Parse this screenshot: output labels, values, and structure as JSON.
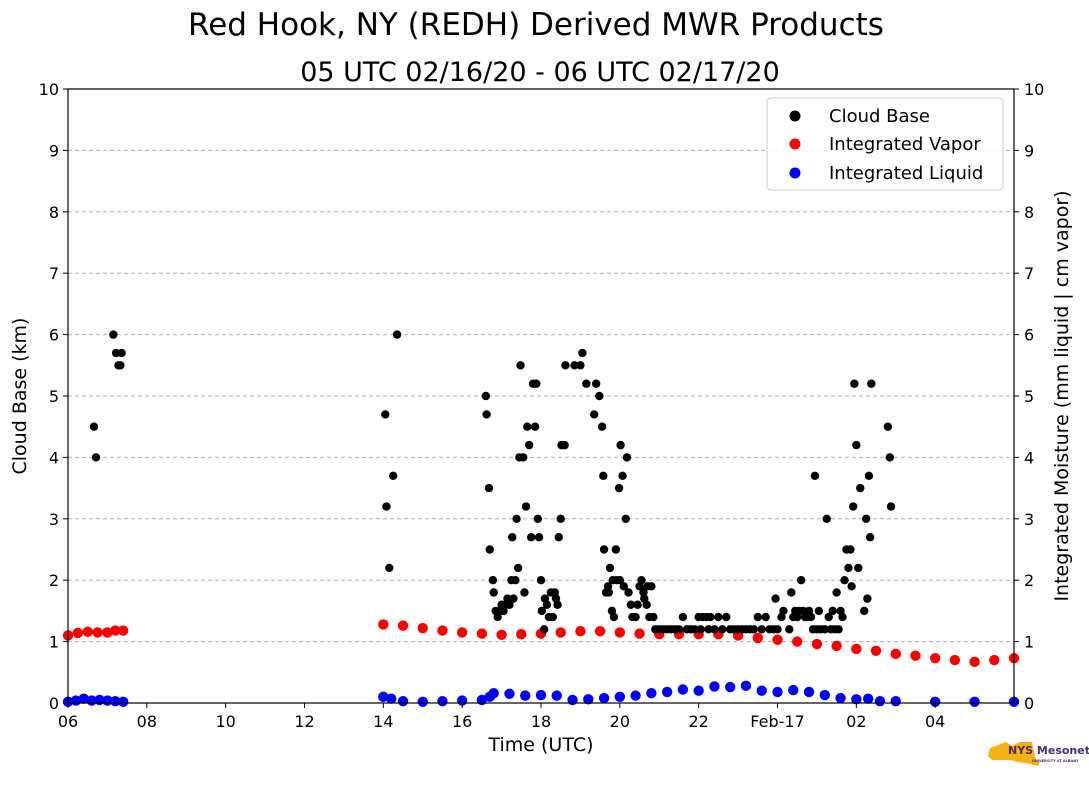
{
  "chart_data": {
    "type": "scatter",
    "title": "Red Hook, NY (REDH) Derived MWR Products",
    "subtitle": "05 UTC 02/16/20 - 06 UTC 02/17/20",
    "xlabel": "Time (UTC)",
    "ylabel": "Cloud Base (km)",
    "ylabel_right": "Integrated Moisture (mm liquid | cm vapor)",
    "x_units": "hours since 06 UTC 02/16/20",
    "xlim": [
      0,
      24
    ],
    "ylim": [
      0,
      10
    ],
    "grid": "horizontal dashed",
    "legend_position": "top-right",
    "x_ticks": [
      {
        "x": 0,
        "label": "06"
      },
      {
        "x": 2,
        "label": "08"
      },
      {
        "x": 4,
        "label": "10"
      },
      {
        "x": 6,
        "label": "12"
      },
      {
        "x": 8,
        "label": "14"
      },
      {
        "x": 10,
        "label": "16"
      },
      {
        "x": 12,
        "label": "18"
      },
      {
        "x": 14,
        "label": "20"
      },
      {
        "x": 16,
        "label": "22"
      },
      {
        "x": 18,
        "label": "Feb-17"
      },
      {
        "x": 20,
        "label": "02"
      },
      {
        "x": 22,
        "label": "04"
      }
    ],
    "y_ticks": [
      0,
      1,
      2,
      3,
      4,
      5,
      6,
      7,
      8,
      9,
      10
    ],
    "y_ticks_right": [
      0,
      1,
      2,
      3,
      4,
      5,
      6,
      7,
      8,
      9,
      10
    ],
    "series": [
      {
        "name": "Cloud Base",
        "color": "#000000",
        "points": [
          [
            0.66,
            4.5
          ],
          [
            0.71,
            4.0
          ],
          [
            1.15,
            6.0
          ],
          [
            1.22,
            5.7
          ],
          [
            1.28,
            5.5
          ],
          [
            1.33,
            5.5
          ],
          [
            1.36,
            5.7
          ],
          [
            8.05,
            4.7
          ],
          [
            8.08,
            3.2
          ],
          [
            8.15,
            2.2
          ],
          [
            8.25,
            3.7
          ],
          [
            8.35,
            6.0
          ],
          [
            10.6,
            5.0
          ],
          [
            10.62,
            4.7
          ],
          [
            10.68,
            3.5
          ],
          [
            10.7,
            2.5
          ],
          [
            10.78,
            2.0
          ],
          [
            10.8,
            1.8
          ],
          [
            10.85,
            1.5
          ],
          [
            10.9,
            1.4
          ],
          [
            10.95,
            1.5
          ],
          [
            11.0,
            1.6
          ],
          [
            11.05,
            1.5
          ],
          [
            11.1,
            1.6
          ],
          [
            11.15,
            1.7
          ],
          [
            11.2,
            1.6
          ],
          [
            11.25,
            2.0
          ],
          [
            11.27,
            2.7
          ],
          [
            11.3,
            1.7
          ],
          [
            11.35,
            2.0
          ],
          [
            11.38,
            3.0
          ],
          [
            11.42,
            2.2
          ],
          [
            11.45,
            4.0
          ],
          [
            11.48,
            5.5
          ],
          [
            11.55,
            4.0
          ],
          [
            11.58,
            1.8
          ],
          [
            11.62,
            3.2
          ],
          [
            11.65,
            4.5
          ],
          [
            11.7,
            4.2
          ],
          [
            11.75,
            2.7
          ],
          [
            11.8,
            5.2
          ],
          [
            11.85,
            4.5
          ],
          [
            11.88,
            5.2
          ],
          [
            11.92,
            3.0
          ],
          [
            11.95,
            2.7
          ],
          [
            12.0,
            2.0
          ],
          [
            12.02,
            1.5
          ],
          [
            12.08,
            1.2
          ],
          [
            12.1,
            1.7
          ],
          [
            12.15,
            1.6
          ],
          [
            12.2,
            1.4
          ],
          [
            12.25,
            1.8
          ],
          [
            12.3,
            1.4
          ],
          [
            12.35,
            1.8
          ],
          [
            12.38,
            1.7
          ],
          [
            12.42,
            1.6
          ],
          [
            12.45,
            2.7
          ],
          [
            12.5,
            3.0
          ],
          [
            12.52,
            4.2
          ],
          [
            12.6,
            4.2
          ],
          [
            12.62,
            5.5
          ],
          [
            12.85,
            5.5
          ],
          [
            13.0,
            5.5
          ],
          [
            13.05,
            5.7
          ],
          [
            13.15,
            5.2
          ],
          [
            13.35,
            4.7
          ],
          [
            13.4,
            5.2
          ],
          [
            13.48,
            5.0
          ],
          [
            13.55,
            4.5
          ],
          [
            13.58,
            3.7
          ],
          [
            13.6,
            2.5
          ],
          [
            13.65,
            1.8
          ],
          [
            13.7,
            1.9
          ],
          [
            13.72,
            1.8
          ],
          [
            13.75,
            2.2
          ],
          [
            13.8,
            1.5
          ],
          [
            13.82,
            2.0
          ],
          [
            13.85,
            1.4
          ],
          [
            13.9,
            2.5
          ],
          [
            13.92,
            2.0
          ],
          [
            13.98,
            3.5
          ],
          [
            14.0,
            2.0
          ],
          [
            14.02,
            4.2
          ],
          [
            14.07,
            3.7
          ],
          [
            14.1,
            1.9
          ],
          [
            14.15,
            3.0
          ],
          [
            14.18,
            4.0
          ],
          [
            14.22,
            1.8
          ],
          [
            14.28,
            1.6
          ],
          [
            14.32,
            1.4
          ],
          [
            14.4,
            1.4
          ],
          [
            14.45,
            1.6
          ],
          [
            14.5,
            1.9
          ],
          [
            14.55,
            2.0
          ],
          [
            14.6,
            1.8
          ],
          [
            14.62,
            1.7
          ],
          [
            14.68,
            1.6
          ],
          [
            14.7,
            1.9
          ],
          [
            14.75,
            1.4
          ],
          [
            14.8,
            1.9
          ],
          [
            14.85,
            1.4
          ],
          [
            14.9,
            1.2
          ],
          [
            15.0,
            1.2
          ],
          [
            15.1,
            1.2
          ],
          [
            15.2,
            1.2
          ],
          [
            15.3,
            1.2
          ],
          [
            15.4,
            1.2
          ],
          [
            15.5,
            1.2
          ],
          [
            15.6,
            1.4
          ],
          [
            15.7,
            1.2
          ],
          [
            15.8,
            1.2
          ],
          [
            15.9,
            1.2
          ],
          [
            16.0,
            1.4
          ],
          [
            16.05,
            1.2
          ],
          [
            16.1,
            1.4
          ],
          [
            16.2,
            1.4
          ],
          [
            16.25,
            1.2
          ],
          [
            16.3,
            1.4
          ],
          [
            16.4,
            1.2
          ],
          [
            16.5,
            1.4
          ],
          [
            16.6,
            1.2
          ],
          [
            16.7,
            1.4
          ],
          [
            16.8,
            1.2
          ],
          [
            16.9,
            1.2
          ],
          [
            17.0,
            1.2
          ],
          [
            17.1,
            1.2
          ],
          [
            17.2,
            1.2
          ],
          [
            17.3,
            1.2
          ],
          [
            17.4,
            1.2
          ],
          [
            17.5,
            1.4
          ],
          [
            17.6,
            1.2
          ],
          [
            17.7,
            1.4
          ],
          [
            17.8,
            1.2
          ],
          [
            17.9,
            1.2
          ],
          [
            17.95,
            1.7
          ],
          [
            18.0,
            1.2
          ],
          [
            18.1,
            1.4
          ],
          [
            18.15,
            1.5
          ],
          [
            18.3,
            1.2
          ],
          [
            18.35,
            1.8
          ],
          [
            18.4,
            1.4
          ],
          [
            18.45,
            1.5
          ],
          [
            18.5,
            1.4
          ],
          [
            18.55,
            1.5
          ],
          [
            18.6,
            2.0
          ],
          [
            18.65,
            1.5
          ],
          [
            18.7,
            1.4
          ],
          [
            18.75,
            1.4
          ],
          [
            18.8,
            1.5
          ],
          [
            18.85,
            1.4
          ],
          [
            18.9,
            1.2
          ],
          [
            18.95,
            3.7
          ],
          [
            19.0,
            1.2
          ],
          [
            19.05,
            1.5
          ],
          [
            19.1,
            1.2
          ],
          [
            19.2,
            1.2
          ],
          [
            19.25,
            3.0
          ],
          [
            19.3,
            1.4
          ],
          [
            19.35,
            1.2
          ],
          [
            19.4,
            1.5
          ],
          [
            19.45,
            1.2
          ],
          [
            19.5,
            1.8
          ],
          [
            19.55,
            1.2
          ],
          [
            19.6,
            1.5
          ],
          [
            19.65,
            1.4
          ],
          [
            19.7,
            2.0
          ],
          [
            19.75,
            2.5
          ],
          [
            19.8,
            2.2
          ],
          [
            19.85,
            2.5
          ],
          [
            19.88,
            1.9
          ],
          [
            19.92,
            3.2
          ],
          [
            19.95,
            5.2
          ],
          [
            20.0,
            4.2
          ],
          [
            20.05,
            2.2
          ],
          [
            20.1,
            3.5
          ],
          [
            20.2,
            1.5
          ],
          [
            20.25,
            3.0
          ],
          [
            20.28,
            1.7
          ],
          [
            20.32,
            3.7
          ],
          [
            20.35,
            2.7
          ],
          [
            20.38,
            5.2
          ],
          [
            20.8,
            4.5
          ],
          [
            20.85,
            4.0
          ],
          [
            20.88,
            3.2
          ]
        ]
      },
      {
        "name": "Integrated Vapor",
        "color": "#ff0000",
        "points": [
          [
            0.0,
            1.1
          ],
          [
            0.25,
            1.14
          ],
          [
            0.5,
            1.16
          ],
          [
            0.75,
            1.15
          ],
          [
            1.0,
            1.15
          ],
          [
            1.2,
            1.18
          ],
          [
            1.4,
            1.18
          ],
          [
            8.0,
            1.28
          ],
          [
            8.5,
            1.26
          ],
          [
            9.0,
            1.22
          ],
          [
            9.5,
            1.18
          ],
          [
            10.0,
            1.15
          ],
          [
            10.5,
            1.13
          ],
          [
            11.0,
            1.11
          ],
          [
            11.5,
            1.12
          ],
          [
            12.0,
            1.13
          ],
          [
            12.5,
            1.15
          ],
          [
            13.0,
            1.17
          ],
          [
            13.5,
            1.17
          ],
          [
            14.0,
            1.15
          ],
          [
            14.5,
            1.13
          ],
          [
            15.0,
            1.12
          ],
          [
            15.5,
            1.12
          ],
          [
            16.0,
            1.12
          ],
          [
            16.5,
            1.12
          ],
          [
            17.0,
            1.1
          ],
          [
            17.5,
            1.06
          ],
          [
            18.0,
            1.03
          ],
          [
            18.5,
            1.0
          ],
          [
            19.0,
            0.96
          ],
          [
            19.5,
            0.93
          ],
          [
            20.0,
            0.88
          ],
          [
            20.5,
            0.85
          ],
          [
            21.0,
            0.8
          ],
          [
            21.5,
            0.77
          ],
          [
            22.0,
            0.73
          ],
          [
            22.5,
            0.7
          ],
          [
            23.0,
            0.67
          ],
          [
            23.5,
            0.7
          ],
          [
            24.0,
            0.73
          ]
        ]
      },
      {
        "name": "Integrated Liquid",
        "color": "#0000ff",
        "points": [
          [
            0.0,
            0.02
          ],
          [
            0.2,
            0.04
          ],
          [
            0.4,
            0.07
          ],
          [
            0.6,
            0.04
          ],
          [
            0.8,
            0.05
          ],
          [
            1.0,
            0.04
          ],
          [
            1.2,
            0.03
          ],
          [
            1.4,
            0.02
          ],
          [
            8.0,
            0.1
          ],
          [
            8.2,
            0.07
          ],
          [
            8.5,
            0.03
          ],
          [
            9.0,
            0.02
          ],
          [
            9.5,
            0.03
          ],
          [
            10.0,
            0.04
          ],
          [
            10.5,
            0.05
          ],
          [
            10.7,
            0.1
          ],
          [
            10.8,
            0.16
          ],
          [
            11.2,
            0.15
          ],
          [
            11.6,
            0.12
          ],
          [
            12.0,
            0.13
          ],
          [
            12.4,
            0.12
          ],
          [
            12.8,
            0.05
          ],
          [
            13.2,
            0.06
          ],
          [
            13.6,
            0.08
          ],
          [
            14.0,
            0.1
          ],
          [
            14.4,
            0.12
          ],
          [
            14.8,
            0.16
          ],
          [
            15.2,
            0.18
          ],
          [
            15.6,
            0.22
          ],
          [
            16.0,
            0.2
          ],
          [
            16.4,
            0.27
          ],
          [
            16.8,
            0.26
          ],
          [
            17.2,
            0.28
          ],
          [
            17.6,
            0.2
          ],
          [
            18.0,
            0.18
          ],
          [
            18.4,
            0.21
          ],
          [
            18.8,
            0.18
          ],
          [
            19.2,
            0.13
          ],
          [
            19.6,
            0.08
          ],
          [
            20.0,
            0.06
          ],
          [
            20.3,
            0.07
          ],
          [
            20.6,
            0.03
          ],
          [
            21.0,
            0.03
          ],
          [
            22.0,
            0.02
          ],
          [
            23.0,
            0.02
          ],
          [
            24.0,
            0.02
          ]
        ]
      }
    ]
  },
  "logo": {
    "text_main": "NYS Mesonet",
    "text_sub": "UNIVERSITY AT ALBANY",
    "state_color": "#f5b111",
    "text_color": "#4b2c73"
  }
}
